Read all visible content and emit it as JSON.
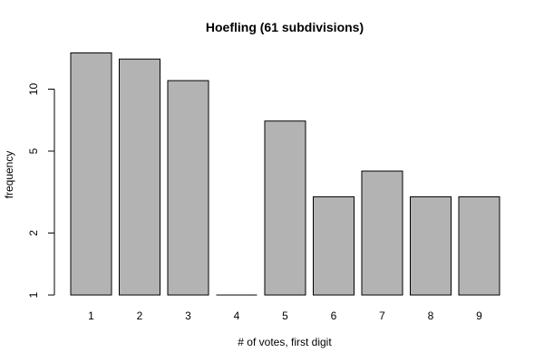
{
  "chart_data": {
    "type": "bar",
    "title": "Hoefling (61 subdivisions)",
    "xlabel": "# of votes, first digit",
    "ylabel": "frequency",
    "categories": [
      "1",
      "2",
      "3",
      "4",
      "5",
      "6",
      "7",
      "8",
      "9"
    ],
    "values": [
      15,
      14,
      11,
      1,
      7,
      3,
      4,
      3,
      3
    ],
    "y_scale": "log",
    "y_ticks": [
      1,
      2,
      5,
      10
    ],
    "ylim": [
      1,
      15
    ],
    "grid": false,
    "legend": "none",
    "colors": {
      "bar_fill": "#b3b3b3",
      "bar_stroke": "#000000",
      "axis": "#000000",
      "background": "#ffffff"
    }
  }
}
